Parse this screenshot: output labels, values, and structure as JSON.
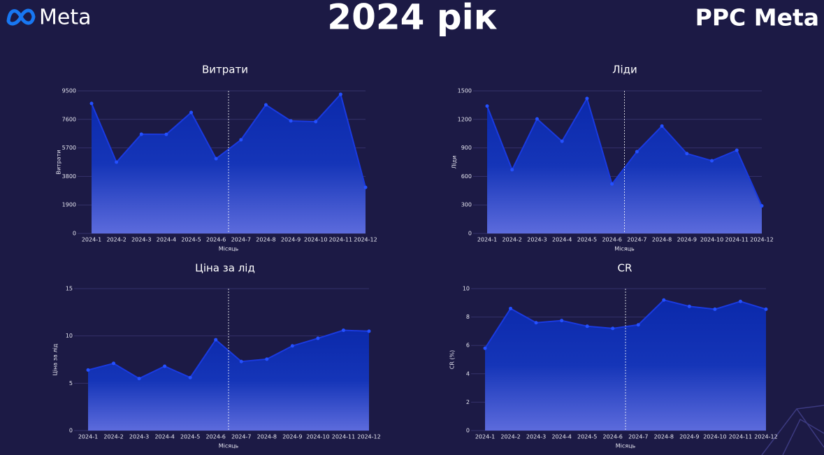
{
  "header": {
    "logo": "Meta",
    "title": "2024 рік",
    "brand": "PPC Meta"
  },
  "chart_data": [
    {
      "type": "area",
      "title": "Витрати",
      "x_label": "Місяць",
      "y_label": "Витрати",
      "categories": [
        "2024-1",
        "2024-2",
        "2024-3",
        "2024-4",
        "2024-5",
        "2024-6",
        "2024-7",
        "2024-8",
        "2024-9",
        "2024-10",
        "2024-11",
        "2024-12"
      ],
      "values": [
        8660,
        4750,
        6610,
        6600,
        8060,
        4980,
        6240,
        8570,
        7500,
        7450,
        9270,
        3070
      ],
      "color": "#1a3ae0",
      "ylim": [
        0,
        9500
      ],
      "yticks": [
        0,
        1900,
        3800,
        5700,
        7600,
        9500
      ],
      "grid": true
    },
    {
      "type": "area",
      "title": "Ліди",
      "x_label": "Місяць",
      "y_label": "Ліди",
      "categories": [
        "2024-1",
        "2024-2",
        "2024-3",
        "2024-4",
        "2024-5",
        "2024-6",
        "2024-7",
        "2024-8",
        "2024-9",
        "2024-10",
        "2024-11",
        "2024-12"
      ],
      "values": [
        1340,
        670,
        1205,
        970,
        1420,
        520,
        860,
        1130,
        840,
        765,
        875,
        290
      ],
      "color": "#1a3ae0",
      "ylim": [
        0,
        1500
      ],
      "yticks": [
        0,
        300,
        600,
        900,
        1200,
        1500
      ],
      "grid": true
    },
    {
      "type": "area",
      "title": "Ціна за лід",
      "x_label": "Місяць",
      "y_label": "Ціна за лід",
      "categories": [
        "2024-1",
        "2024-2",
        "2024-3",
        "2024-4",
        "2024-5",
        "2024-6",
        "2024-7",
        "2024-8",
        "2024-9",
        "2024-10",
        "2024-11",
        "2024-12"
      ],
      "values": [
        6.4,
        7.1,
        5.5,
        6.8,
        5.6,
        9.6,
        7.3,
        7.55,
        8.95,
        9.75,
        10.6,
        10.5
      ],
      "color": "#1a3ae0",
      "ylim": [
        0,
        15
      ],
      "yticks": [
        0,
        5,
        10,
        15
      ],
      "grid": true
    },
    {
      "type": "area",
      "title": "CR",
      "x_label": "Місяць",
      "y_label": "CR (%)",
      "categories": [
        "2024-1",
        "2024-2",
        "2024-3",
        "2024-4",
        "2024-5",
        "2024-6",
        "2024-7",
        "2024-8",
        "2024-9",
        "2024-10",
        "2024-11",
        "2024-12"
      ],
      "values": [
        5.8,
        8.6,
        7.6,
        7.75,
        7.35,
        7.2,
        7.45,
        9.2,
        8.75,
        8.55,
        9.1,
        8.55
      ],
      "color": "#1a3ae0",
      "ylim": [
        0,
        10
      ],
      "yticks": [
        0,
        2,
        4,
        6,
        8,
        10
      ],
      "grid": true
    }
  ]
}
